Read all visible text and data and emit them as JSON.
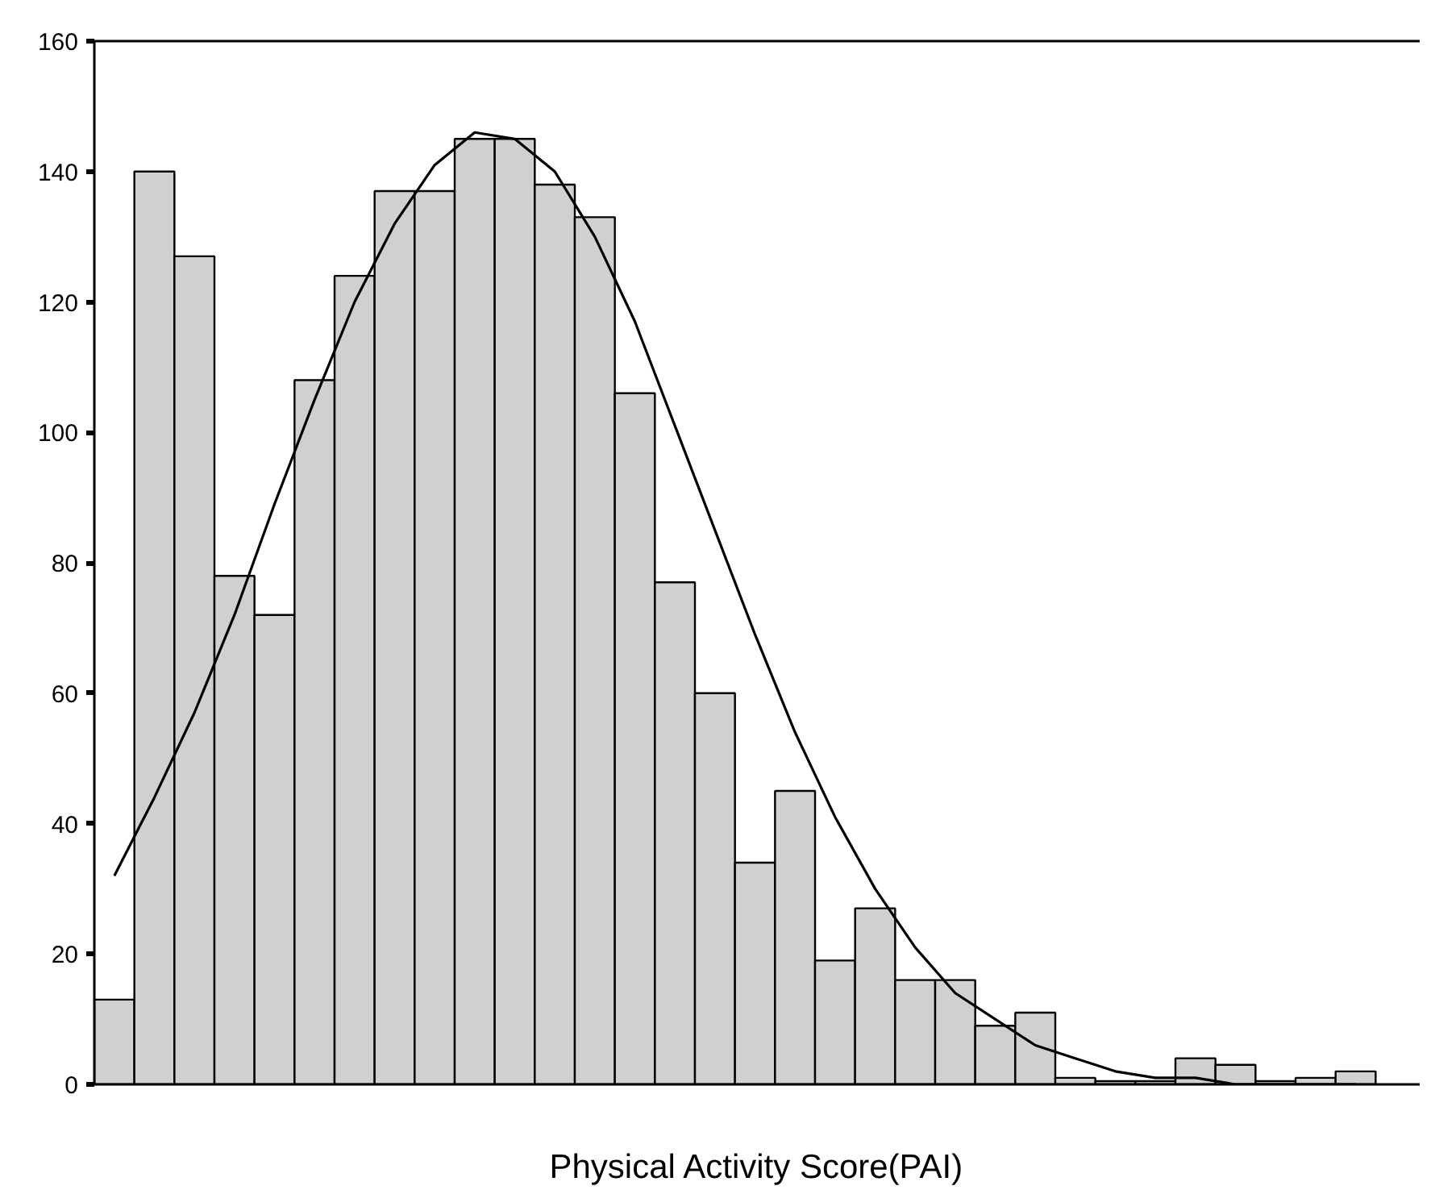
{
  "chart_data": {
    "type": "bar",
    "xlabel": "Physical Activity Score(PAI)",
    "categories": [
      null,
      null,
      null,
      null,
      null,
      null,
      null,
      null,
      null,
      null,
      null,
      null,
      null,
      null,
      null,
      null,
      null,
      null,
      null,
      null,
      null,
      null,
      null,
      null,
      null,
      null,
      null,
      null,
      null,
      null,
      null,
      null
    ],
    "series": [
      {
        "color": "#d0d0d0",
        "values": [
          13,
          140,
          127,
          78,
          72,
          108,
          124,
          137,
          137,
          145,
          145,
          138,
          133,
          106,
          77,
          60,
          34,
          45,
          19,
          27,
          16,
          16,
          9,
          11,
          1,
          0.5,
          0.5,
          4,
          3,
          0.5,
          1,
          2
        ]
      },
      {
        "type": "line",
        "color": "#000000",
        "values": [
          32,
          44,
          57,
          72,
          89,
          105,
          120,
          132,
          141,
          146,
          145,
          140,
          130,
          117,
          101,
          85,
          69,
          54,
          41,
          30,
          21,
          14,
          10,
          6,
          4,
          2,
          1,
          1,
          0,
          0,
          0,
          0
        ]
      }
    ],
    "ylim": [
      0,
      160
    ],
    "yticks": [
      0,
      20,
      40,
      60,
      80,
      100,
      120,
      140,
      160
    ],
    "tick_labels": "y",
    "grid": false
  }
}
